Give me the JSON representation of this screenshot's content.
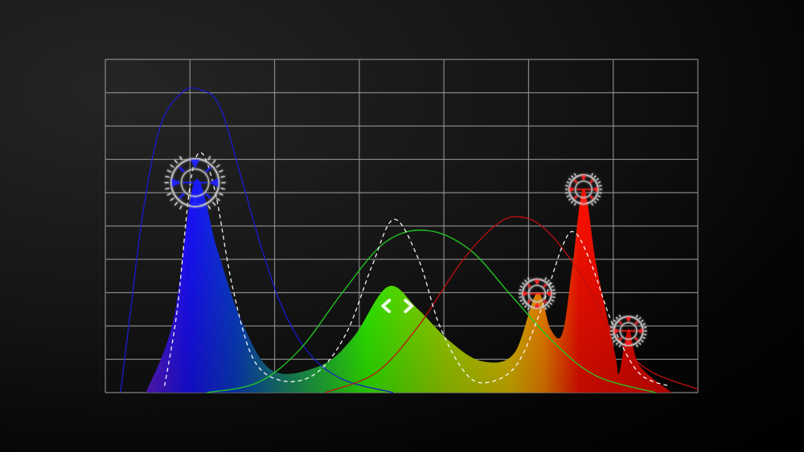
{
  "chart_data": {
    "type": "area",
    "title": "",
    "xlabel": "",
    "ylabel": "",
    "xlim": [
      0,
      7
    ],
    "ylim": [
      0,
      10
    ],
    "grid": true,
    "x_gridlines": 7,
    "y_gridlines": 10,
    "spectrum_fill": {
      "gradient_colors": [
        "#6a1fd0",
        "#1a10ff",
        "#0a40d0",
        "#1a8a70",
        "#33ff00",
        "#aadd00",
        "#e8c800",
        "#ff8800",
        "#ff1000",
        "#e00000"
      ],
      "points": [
        [
          0.48,
          0
        ],
        [
          0.8,
          2.14
        ],
        [
          1.06,
          6.36
        ],
        [
          1.32,
          4.31
        ],
        [
          1.61,
          2.14
        ],
        [
          1.98,
          0.65
        ],
        [
          2.55,
          0.82
        ],
        [
          2.93,
          1.66
        ],
        [
          3.34,
          3.18
        ],
        [
          3.69,
          2.51
        ],
        [
          4.07,
          1.54
        ],
        [
          4.45,
          0.94
        ],
        [
          4.83,
          1.18
        ],
        [
          5.1,
          2.99
        ],
        [
          5.26,
          1.9
        ],
        [
          5.4,
          1.78
        ],
        [
          5.52,
          3.83
        ],
        [
          5.65,
          6.12
        ],
        [
          5.8,
          3.83
        ],
        [
          6.02,
          1.18
        ],
        [
          6.07,
          0.58
        ],
        [
          6.18,
          1.9
        ],
        [
          6.31,
          0.82
        ],
        [
          6.69,
          0
        ]
      ]
    },
    "series": [
      {
        "color": "#1a1ad0",
        "style": "solid",
        "points": [
          [
            0.18,
            0
          ],
          [
            0.3,
            2.5
          ],
          [
            0.45,
            5.5
          ],
          [
            0.65,
            8.0
          ],
          [
            0.9,
            9.0
          ],
          [
            1.11,
            9.1
          ],
          [
            1.35,
            8.6
          ],
          [
            1.6,
            6.5
          ],
          [
            1.85,
            4.3
          ],
          [
            2.1,
            2.5
          ],
          [
            2.4,
            1.2
          ],
          [
            2.8,
            0.4
          ],
          [
            3.4,
            0
          ]
        ]
      },
      {
        "color": "#22cc22",
        "style": "solid",
        "points": [
          [
            1.2,
            0
          ],
          [
            1.8,
            0.3
          ],
          [
            2.3,
            1.3
          ],
          [
            2.8,
            3.0
          ],
          [
            3.3,
            4.5
          ],
          [
            3.79,
            4.87
          ],
          [
            4.3,
            4.3
          ],
          [
            4.8,
            2.9
          ],
          [
            5.3,
            1.5
          ],
          [
            5.8,
            0.5
          ],
          [
            6.5,
            0
          ]
        ]
      },
      {
        "color": "#c01010",
        "style": "solid",
        "points": [
          [
            2.6,
            0
          ],
          [
            3.2,
            0.6
          ],
          [
            3.7,
            2.0
          ],
          [
            4.2,
            3.9
          ],
          [
            4.6,
            5.0
          ],
          [
            4.88,
            5.28
          ],
          [
            5.2,
            4.9
          ],
          [
            5.6,
            3.6
          ],
          [
            6.0,
            1.8
          ],
          [
            6.4,
            0.7
          ],
          [
            7.0,
            0.1
          ]
        ]
      },
      {
        "color": "#ffffff",
        "style": "dashed",
        "points": [
          [
            0.7,
            0.2
          ],
          [
            0.85,
            2.5
          ],
          [
            1.0,
            6.2
          ],
          [
            1.13,
            7.2
          ],
          [
            1.3,
            6.0
          ],
          [
            1.5,
            3.2
          ],
          [
            1.75,
            1.0
          ],
          [
            2.1,
            0.35
          ],
          [
            2.5,
            0.6
          ],
          [
            2.85,
            1.8
          ],
          [
            3.15,
            3.8
          ],
          [
            3.41,
            5.2
          ],
          [
            3.7,
            4.0
          ],
          [
            3.95,
            2.0
          ],
          [
            4.25,
            0.6
          ],
          [
            4.5,
            0.3
          ],
          [
            4.85,
            0.8
          ],
          [
            5.15,
            2.5
          ],
          [
            5.4,
            4.4
          ],
          [
            5.55,
            4.8
          ],
          [
            5.75,
            3.8
          ],
          [
            6.0,
            2.0
          ],
          [
            6.3,
            0.6
          ],
          [
            6.65,
            0.2
          ]
        ]
      }
    ],
    "markers": [
      {
        "name": "blue-peak",
        "x": 1.06,
        "y": 6.3,
        "color": "#2020ff",
        "size": "large"
      },
      {
        "name": "orange-peak",
        "x": 5.1,
        "y": 2.97,
        "color": "#ff2020",
        "size": "small"
      },
      {
        "name": "red-peak",
        "x": 5.65,
        "y": 6.1,
        "color": "#ff2020",
        "size": "small"
      },
      {
        "name": "small-red-peak",
        "x": 6.18,
        "y": 1.85,
        "color": "#ff2020",
        "size": "small"
      }
    ],
    "arrows_icon": {
      "name": "left-right-chevrons",
      "x": 3.45,
      "y": 2.6,
      "color": "#ffffff"
    }
  }
}
